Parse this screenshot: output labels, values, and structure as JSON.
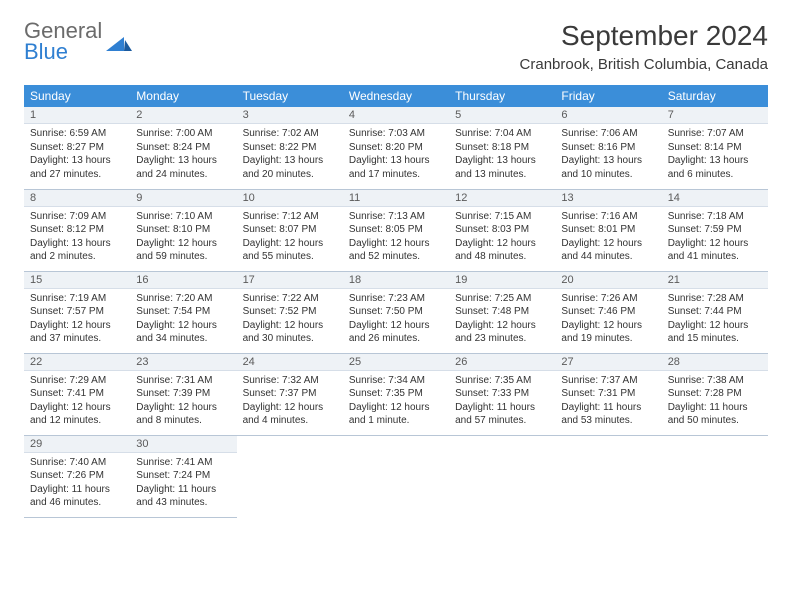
{
  "logo": {
    "general": "General",
    "blue": "Blue"
  },
  "title": "September 2024",
  "location": "Cranbrook, British Columbia, Canada",
  "colors": {
    "header_bg": "#3b8ed9",
    "header_text": "#ffffff",
    "daynum_bg": "#eef2f6",
    "row_border": "#b8c6d6",
    "text": "#333333",
    "logo_gray": "#6b6b6b",
    "logo_blue": "#2f7fd1"
  },
  "day_names": [
    "Sunday",
    "Monday",
    "Tuesday",
    "Wednesday",
    "Thursday",
    "Friday",
    "Saturday"
  ],
  "weeks": [
    [
      {
        "n": "1",
        "sunrise": "6:59 AM",
        "sunset": "8:27 PM",
        "daylight": "13 hours and 27 minutes."
      },
      {
        "n": "2",
        "sunrise": "7:00 AM",
        "sunset": "8:24 PM",
        "daylight": "13 hours and 24 minutes."
      },
      {
        "n": "3",
        "sunrise": "7:02 AM",
        "sunset": "8:22 PM",
        "daylight": "13 hours and 20 minutes."
      },
      {
        "n": "4",
        "sunrise": "7:03 AM",
        "sunset": "8:20 PM",
        "daylight": "13 hours and 17 minutes."
      },
      {
        "n": "5",
        "sunrise": "7:04 AM",
        "sunset": "8:18 PM",
        "daylight": "13 hours and 13 minutes."
      },
      {
        "n": "6",
        "sunrise": "7:06 AM",
        "sunset": "8:16 PM",
        "daylight": "13 hours and 10 minutes."
      },
      {
        "n": "7",
        "sunrise": "7:07 AM",
        "sunset": "8:14 PM",
        "daylight": "13 hours and 6 minutes."
      }
    ],
    [
      {
        "n": "8",
        "sunrise": "7:09 AM",
        "sunset": "8:12 PM",
        "daylight": "13 hours and 2 minutes."
      },
      {
        "n": "9",
        "sunrise": "7:10 AM",
        "sunset": "8:10 PM",
        "daylight": "12 hours and 59 minutes."
      },
      {
        "n": "10",
        "sunrise": "7:12 AM",
        "sunset": "8:07 PM",
        "daylight": "12 hours and 55 minutes."
      },
      {
        "n": "11",
        "sunrise": "7:13 AM",
        "sunset": "8:05 PM",
        "daylight": "12 hours and 52 minutes."
      },
      {
        "n": "12",
        "sunrise": "7:15 AM",
        "sunset": "8:03 PM",
        "daylight": "12 hours and 48 minutes."
      },
      {
        "n": "13",
        "sunrise": "7:16 AM",
        "sunset": "8:01 PM",
        "daylight": "12 hours and 44 minutes."
      },
      {
        "n": "14",
        "sunrise": "7:18 AM",
        "sunset": "7:59 PM",
        "daylight": "12 hours and 41 minutes."
      }
    ],
    [
      {
        "n": "15",
        "sunrise": "7:19 AM",
        "sunset": "7:57 PM",
        "daylight": "12 hours and 37 minutes."
      },
      {
        "n": "16",
        "sunrise": "7:20 AM",
        "sunset": "7:54 PM",
        "daylight": "12 hours and 34 minutes."
      },
      {
        "n": "17",
        "sunrise": "7:22 AM",
        "sunset": "7:52 PM",
        "daylight": "12 hours and 30 minutes."
      },
      {
        "n": "18",
        "sunrise": "7:23 AM",
        "sunset": "7:50 PM",
        "daylight": "12 hours and 26 minutes."
      },
      {
        "n": "19",
        "sunrise": "7:25 AM",
        "sunset": "7:48 PM",
        "daylight": "12 hours and 23 minutes."
      },
      {
        "n": "20",
        "sunrise": "7:26 AM",
        "sunset": "7:46 PM",
        "daylight": "12 hours and 19 minutes."
      },
      {
        "n": "21",
        "sunrise": "7:28 AM",
        "sunset": "7:44 PM",
        "daylight": "12 hours and 15 minutes."
      }
    ],
    [
      {
        "n": "22",
        "sunrise": "7:29 AM",
        "sunset": "7:41 PM",
        "daylight": "12 hours and 12 minutes."
      },
      {
        "n": "23",
        "sunrise": "7:31 AM",
        "sunset": "7:39 PM",
        "daylight": "12 hours and 8 minutes."
      },
      {
        "n": "24",
        "sunrise": "7:32 AM",
        "sunset": "7:37 PM",
        "daylight": "12 hours and 4 minutes."
      },
      {
        "n": "25",
        "sunrise": "7:34 AM",
        "sunset": "7:35 PM",
        "daylight": "12 hours and 1 minute."
      },
      {
        "n": "26",
        "sunrise": "7:35 AM",
        "sunset": "7:33 PM",
        "daylight": "11 hours and 57 minutes."
      },
      {
        "n": "27",
        "sunrise": "7:37 AM",
        "sunset": "7:31 PM",
        "daylight": "11 hours and 53 minutes."
      },
      {
        "n": "28",
        "sunrise": "7:38 AM",
        "sunset": "7:28 PM",
        "daylight": "11 hours and 50 minutes."
      }
    ],
    [
      {
        "n": "29",
        "sunrise": "7:40 AM",
        "sunset": "7:26 PM",
        "daylight": "11 hours and 46 minutes."
      },
      {
        "n": "30",
        "sunrise": "7:41 AM",
        "sunset": "7:24 PM",
        "daylight": "11 hours and 43 minutes."
      },
      null,
      null,
      null,
      null,
      null
    ]
  ],
  "labels": {
    "sunrise": "Sunrise: ",
    "sunset": "Sunset: ",
    "daylight": "Daylight: "
  }
}
